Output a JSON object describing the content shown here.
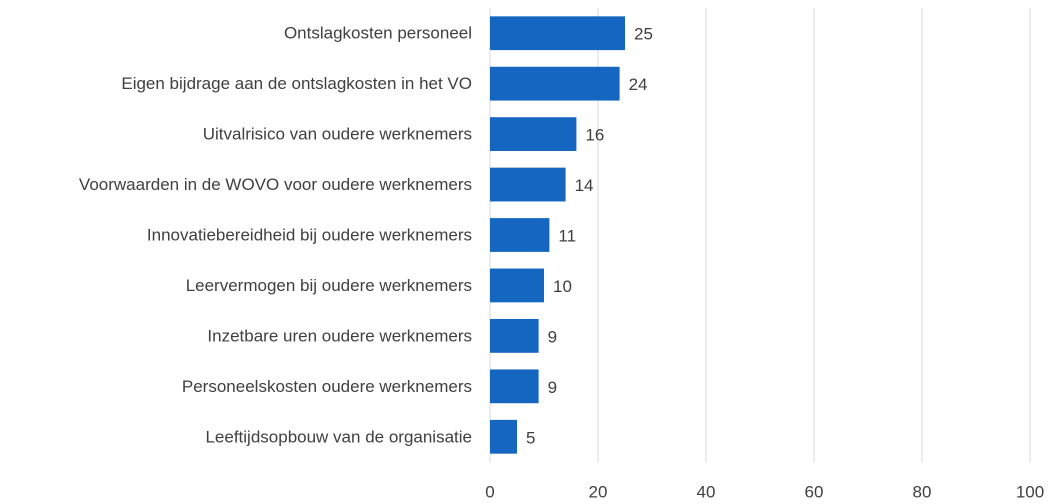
{
  "chart_data": {
    "type": "bar",
    "orientation": "horizontal",
    "categories": [
      "Ontslagkosten personeel",
      "Eigen bijdrage aan de ontslagkosten in het VO",
      "Uitvalrisico van oudere werknemers",
      "Voorwaarden in de WOVO voor oudere werknemers",
      "Innovatiebereidheid bij oudere werknemers",
      "Leervermogen bij oudere werknemers",
      "Inzetbare uren oudere werknemers",
      "Personeelskosten oudere werknemers",
      "Leeftijdsopbouw van de organisatie"
    ],
    "values": [
      25,
      24,
      16,
      14,
      11,
      10,
      9,
      9,
      5
    ],
    "color": "#1566c0",
    "xlim": [
      0,
      100
    ],
    "xticks": [
      0,
      20,
      40,
      60,
      80,
      100
    ],
    "grid": true
  }
}
